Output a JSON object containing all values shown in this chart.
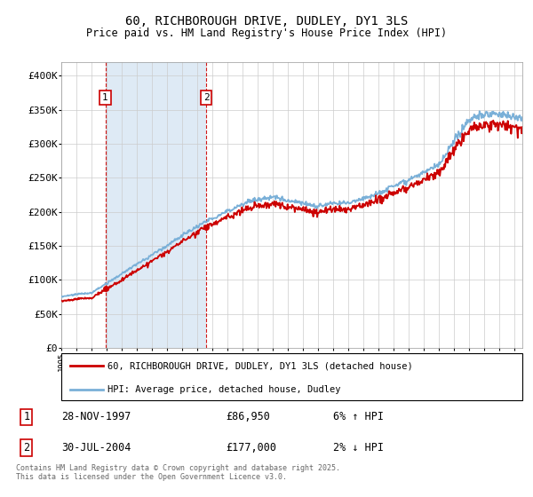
{
  "title": "60, RICHBOROUGH DRIVE, DUDLEY, DY1 3LS",
  "subtitle": "Price paid vs. HM Land Registry's House Price Index (HPI)",
  "background_color": "#ffffff",
  "plot_bg_color": "#ffffff",
  "grid_color": "#cccccc",
  "hpi_color": "#7ab0d8",
  "price_color": "#cc0000",
  "shade_color": "#deeaf5",
  "ylim": [
    0,
    420000
  ],
  "yticks": [
    0,
    50000,
    100000,
    150000,
    200000,
    250000,
    300000,
    350000,
    400000
  ],
  "ytick_labels": [
    "£0",
    "£50K",
    "£100K",
    "£150K",
    "£200K",
    "£250K",
    "£300K",
    "£350K",
    "£400K"
  ],
  "sale1_date": 1997.91,
  "sale1_price": 86950,
  "sale2_date": 2004.58,
  "sale2_price": 177000,
  "legend_label_price": "60, RICHBOROUGH DRIVE, DUDLEY, DY1 3LS (detached house)",
  "legend_label_hpi": "HPI: Average price, detached house, Dudley",
  "sale1_info": "28-NOV-1997",
  "sale1_amount": "£86,950",
  "sale1_hpi": "6% ↑ HPI",
  "sale2_info": "30-JUL-2004",
  "sale2_amount": "£177,000",
  "sale2_hpi": "2% ↓ HPI",
  "footer": "Contains HM Land Registry data © Crown copyright and database right 2025.\nThis data is licensed under the Open Government Licence v3.0.",
  "xmin": 1995.0,
  "xmax": 2025.5,
  "n_points": 700
}
